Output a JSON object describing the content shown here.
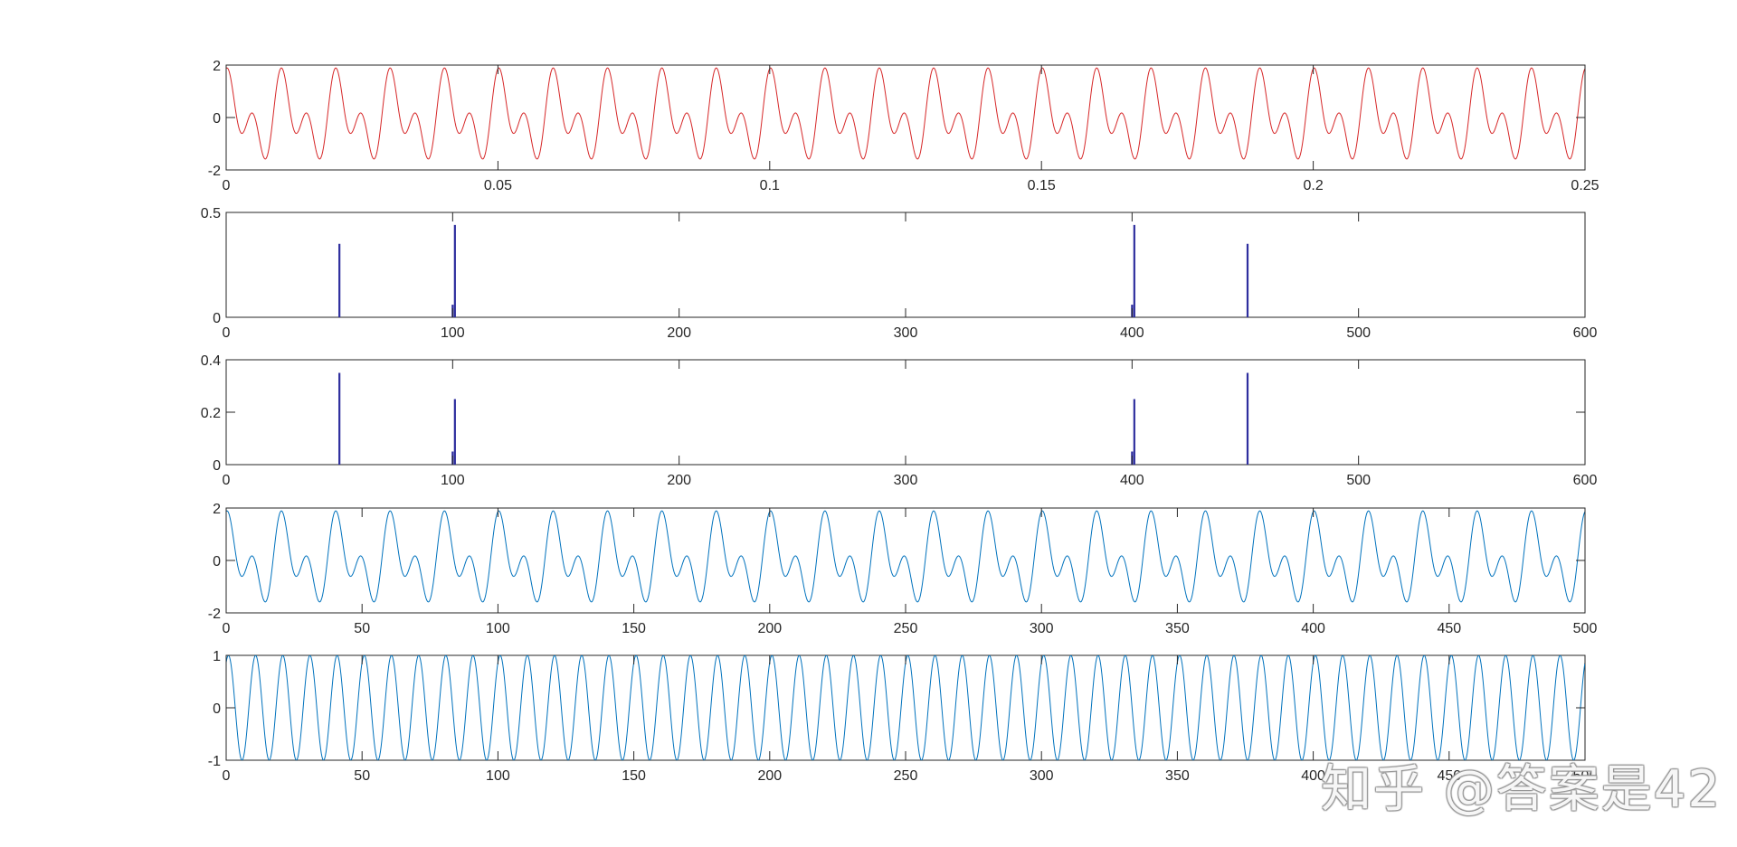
{
  "watermark": {
    "text": "知乎 @答案是42"
  },
  "chart_data": [
    {
      "type": "line",
      "title": "",
      "xlabel": "",
      "ylabel": "",
      "color": "#d62728",
      "xlim": [
        0,
        0.25
      ],
      "ylim": [
        -2,
        2
      ],
      "xticks": [
        0,
        0.05,
        0.1,
        0.15,
        0.2,
        0.25
      ],
      "xtick_labels": [
        "0",
        "0.05",
        "0.1",
        "0.15",
        "0.2",
        "0.25"
      ],
      "yticks": [
        -2,
        0,
        2
      ],
      "ytick_labels": [
        "-2",
        "0",
        "2"
      ],
      "series": [
        {
          "function": "sin(2*pi*100*t + pi/3) + cos(2*pi*200*t)",
          "x_range": [
            0,
            0.25
          ],
          "samples": 2000
        }
      ]
    },
    {
      "type": "bar",
      "title": "",
      "xlabel": "",
      "ylabel": "",
      "color": "#2e2e9e",
      "xlim": [
        0,
        600
      ],
      "ylim": [
        0,
        0.5
      ],
      "xticks": [
        0,
        100,
        200,
        300,
        400,
        500,
        600
      ],
      "xtick_labels": [
        "0",
        "100",
        "200",
        "300",
        "400",
        "500",
        "600"
      ],
      "yticks": [
        0,
        0.5
      ],
      "ytick_labels": [
        "0",
        "0.5"
      ],
      "stems": [
        {
          "x": 50,
          "y": 0.35
        },
        {
          "x": 100,
          "y": 0.06
        },
        {
          "x": 101,
          "y": 0.44
        },
        {
          "x": 400,
          "y": 0.06
        },
        {
          "x": 401,
          "y": 0.44
        },
        {
          "x": 451,
          "y": 0.35
        }
      ]
    },
    {
      "type": "bar",
      "title": "",
      "xlabel": "",
      "ylabel": "",
      "color": "#2e2e9e",
      "xlim": [
        0,
        600
      ],
      "ylim": [
        0,
        0.4
      ],
      "xticks": [
        0,
        100,
        200,
        300,
        400,
        500,
        600
      ],
      "xtick_labels": [
        "0",
        "100",
        "200",
        "300",
        "400",
        "500",
        "600"
      ],
      "yticks": [
        0,
        0.2,
        0.4
      ],
      "ytick_labels": [
        "0",
        "0.2",
        "0.4"
      ],
      "stems": [
        {
          "x": 50,
          "y": 0.35
        },
        {
          "x": 100,
          "y": 0.05
        },
        {
          "x": 101,
          "y": 0.25
        },
        {
          "x": 400,
          "y": 0.05
        },
        {
          "x": 401,
          "y": 0.25
        },
        {
          "x": 451,
          "y": 0.35
        }
      ]
    },
    {
      "type": "line",
      "title": "",
      "xlabel": "",
      "ylabel": "",
      "color": "#0072bd",
      "xlim": [
        0,
        500
      ],
      "ylim": [
        -2,
        2
      ],
      "xticks": [
        0,
        50,
        100,
        150,
        200,
        250,
        300,
        350,
        400,
        450,
        500
      ],
      "xtick_labels": [
        "0",
        "50",
        "100",
        "150",
        "200",
        "250",
        "300",
        "350",
        "400",
        "450",
        "500"
      ],
      "yticks": [
        -2,
        0,
        2
      ],
      "ytick_labels": [
        "-2",
        "0",
        "2"
      ],
      "series": [
        {
          "function": "sin(2*pi*n/20 + pi/3) + cos(2*pi*n/10)",
          "x_range": [
            0,
            500
          ],
          "samples": 2000
        }
      ]
    },
    {
      "type": "line",
      "title": "",
      "xlabel": "",
      "ylabel": "",
      "color": "#0072bd",
      "xlim": [
        0,
        500
      ],
      "ylim": [
        -1,
        1
      ],
      "xticks": [
        0,
        50,
        100,
        150,
        200,
        250,
        300,
        350,
        400,
        450,
        500
      ],
      "xtick_labels": [
        "0",
        "50",
        "100",
        "150",
        "200",
        "250",
        "300",
        "350",
        "400",
        "450",
        "500"
      ],
      "yticks": [
        -1,
        0,
        1
      ],
      "ytick_labels": [
        "-1",
        "0",
        "1"
      ],
      "series": [
        {
          "function": "sin(2*pi*n/10 + pi/3)",
          "x_range": [
            0,
            500
          ],
          "samples": 2000
        }
      ]
    }
  ]
}
